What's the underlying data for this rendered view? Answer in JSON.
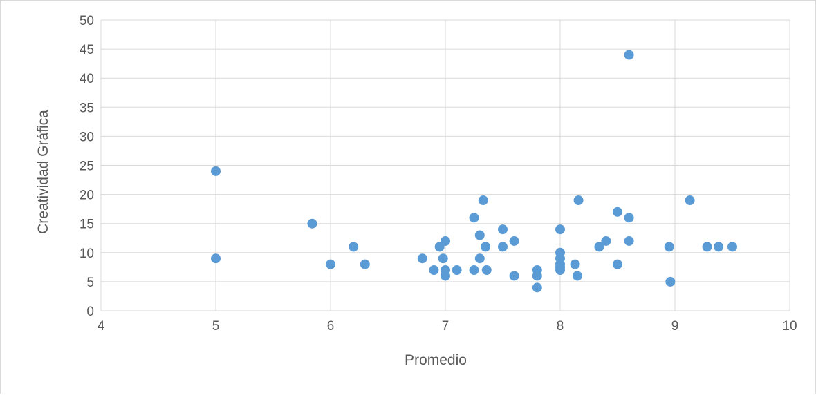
{
  "chart_data": {
    "type": "scatter",
    "title": "",
    "xlabel": "Promedio",
    "ylabel": "Creatividad Gráfica",
    "xlim": [
      4,
      10
    ],
    "ylim": [
      0,
      50
    ],
    "x_ticks": [
      4,
      5,
      6,
      7,
      8,
      9,
      10
    ],
    "y_ticks": [
      0,
      5,
      10,
      15,
      20,
      25,
      30,
      35,
      40,
      45,
      50
    ],
    "grid": true,
    "legend": "none",
    "marker_color": "#5b9bd5",
    "series": [
      {
        "points": [
          [
            5.0,
            24
          ],
          [
            5.0,
            9
          ],
          [
            5.84,
            15
          ],
          [
            6.0,
            8
          ],
          [
            6.2,
            11
          ],
          [
            6.3,
            8
          ],
          [
            6.8,
            9
          ],
          [
            6.9,
            7
          ],
          [
            6.95,
            11
          ],
          [
            6.98,
            9
          ],
          [
            7.0,
            12
          ],
          [
            7.0,
            7
          ],
          [
            7.0,
            6
          ],
          [
            7.1,
            7
          ],
          [
            7.25,
            16
          ],
          [
            7.25,
            7
          ],
          [
            7.3,
            13
          ],
          [
            7.3,
            9
          ],
          [
            7.33,
            19
          ],
          [
            7.35,
            11
          ],
          [
            7.36,
            7
          ],
          [
            7.5,
            14
          ],
          [
            7.5,
            11
          ],
          [
            7.6,
            12
          ],
          [
            7.6,
            6
          ],
          [
            7.8,
            7
          ],
          [
            7.8,
            6
          ],
          [
            7.8,
            4
          ],
          [
            8.0,
            14
          ],
          [
            8.0,
            10
          ],
          [
            8.0,
            9
          ],
          [
            8.0,
            8
          ],
          [
            8.0,
            7.5
          ],
          [
            8.0,
            7
          ],
          [
            8.13,
            8
          ],
          [
            8.15,
            6
          ],
          [
            8.16,
            19
          ],
          [
            8.34,
            11
          ],
          [
            8.4,
            12
          ],
          [
            8.5,
            17
          ],
          [
            8.5,
            8
          ],
          [
            8.6,
            44
          ],
          [
            8.6,
            16
          ],
          [
            8.6,
            12
          ],
          [
            8.95,
            11
          ],
          [
            8.96,
            5
          ],
          [
            9.13,
            19
          ],
          [
            9.28,
            11
          ],
          [
            9.38,
            11
          ],
          [
            9.5,
            11
          ]
        ]
      }
    ]
  }
}
